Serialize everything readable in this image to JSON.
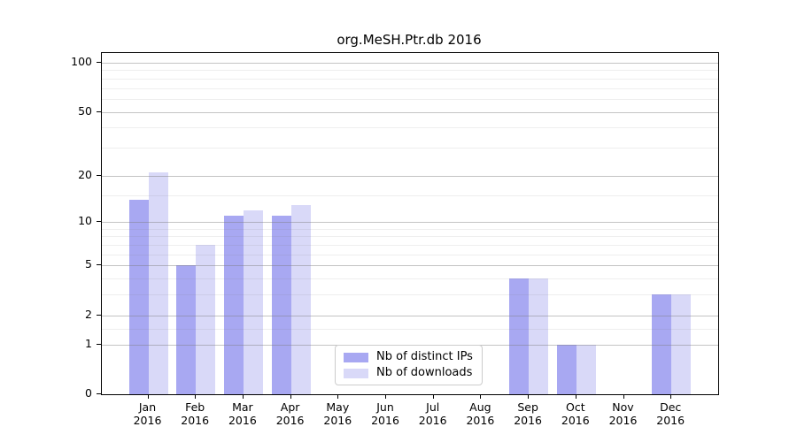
{
  "title": "org.MeSH.Ptr.db 2016",
  "chart_data": {
    "type": "bar",
    "title": "org.MeSH.Ptr.db 2016",
    "categories": [
      "Jan 2016",
      "Feb 2016",
      "Mar 2016",
      "Apr 2016",
      "May 2016",
      "Jun 2016",
      "Jul 2016",
      "Aug 2016",
      "Sep 2016",
      "Oct 2016",
      "Nov 2016",
      "Dec 2016"
    ],
    "series": [
      {
        "name": "Nb of distinct IPs",
        "color": "#a8a8f2",
        "values": [
          14,
          5,
          11,
          11,
          0,
          0,
          0,
          0,
          4,
          1,
          0,
          3
        ]
      },
      {
        "name": "Nb of downloads",
        "color": "#d9d9f8",
        "values": [
          21,
          7,
          12,
          13,
          0,
          0,
          0,
          0,
          4,
          1,
          0,
          3
        ]
      }
    ],
    "xlabel": "",
    "ylabel": "",
    "yscale": "log1p",
    "ylim": [
      0,
      115
    ],
    "yticks_major": [
      0,
      1,
      2,
      5,
      10,
      20,
      50,
      100
    ],
    "yticks_minor": [
      1.5,
      3,
      4,
      6,
      7,
      8,
      9,
      15,
      30,
      40,
      60,
      70,
      80,
      90
    ],
    "grid": true,
    "legend_position": "lower center",
    "colors": {
      "grid_major": "rgba(125,125,125,0.45)",
      "grid_minor": "rgba(125,125,125,0.13)",
      "axis": "#000000",
      "background": "#ffffff"
    }
  }
}
